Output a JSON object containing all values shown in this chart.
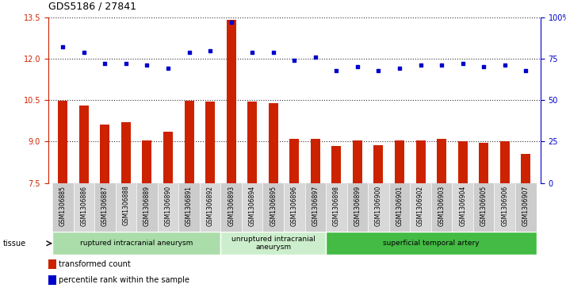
{
  "title": "GDS5186 / 27841",
  "samples": [
    "GSM1306885",
    "GSM1306886",
    "GSM1306887",
    "GSM1306888",
    "GSM1306889",
    "GSM1306890",
    "GSM1306891",
    "GSM1306892",
    "GSM1306893",
    "GSM1306894",
    "GSM1306895",
    "GSM1306896",
    "GSM1306897",
    "GSM1306898",
    "GSM1306899",
    "GSM1306900",
    "GSM1306901",
    "GSM1306902",
    "GSM1306903",
    "GSM1306904",
    "GSM1306905",
    "GSM1306906",
    "GSM1306907"
  ],
  "transformed_count": [
    10.48,
    10.3,
    9.6,
    9.7,
    9.05,
    9.35,
    10.48,
    10.45,
    13.42,
    10.46,
    10.38,
    9.1,
    9.1,
    8.85,
    9.05,
    8.87,
    9.05,
    9.05,
    9.1,
    9.0,
    8.95,
    9.0,
    8.55
  ],
  "percentile_rank": [
    82,
    79,
    72,
    72,
    71,
    69,
    79,
    80,
    97,
    79,
    79,
    74,
    76,
    68,
    70,
    68,
    69,
    71,
    71,
    72,
    70,
    71,
    68
  ],
  "ylim_left": [
    7.5,
    13.5
  ],
  "ylim_right": [
    0,
    100
  ],
  "yticks_left": [
    7.5,
    9.0,
    10.5,
    12.0,
    13.5
  ],
  "yticks_right": [
    0,
    25,
    50,
    75,
    100
  ],
  "ytick_labels_right": [
    "0",
    "25",
    "50",
    "75",
    "100%"
  ],
  "bar_color": "#cc2200",
  "dot_color": "#0000cc",
  "dotted_line_color": "#333333",
  "chart_bg": "#ffffff",
  "xtick_bg": "#cccccc",
  "groups": [
    {
      "label": "ruptured intracranial aneurysm",
      "start": 0,
      "end": 8,
      "color": "#aaddaa"
    },
    {
      "label": "unruptured intracranial\naneurysm",
      "start": 8,
      "end": 13,
      "color": "#cceecc"
    },
    {
      "label": "superficial temporal artery",
      "start": 13,
      "end": 23,
      "color": "#44bb44"
    }
  ],
  "tissue_label": "tissue",
  "legend_bar_label": "transformed count",
  "legend_dot_label": "percentile rank within the sample",
  "title_fontsize": 9,
  "tick_fontsize": 7,
  "sample_fontsize": 5.5,
  "group_fontsize": 6.5,
  "legend_fontsize": 7
}
